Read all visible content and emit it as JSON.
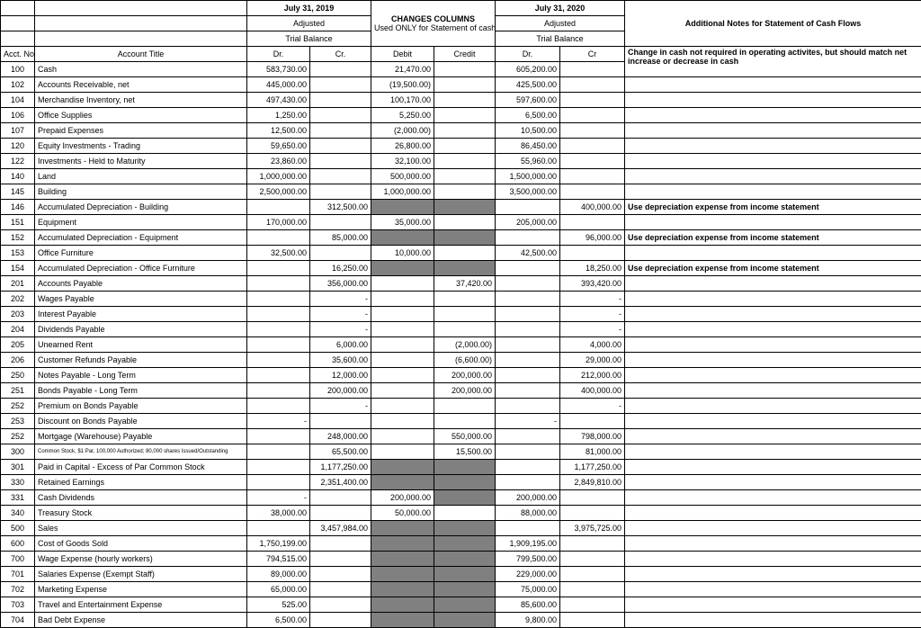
{
  "headers": {
    "date2019": "July 31, 2019",
    "adjusted": "Adjusted",
    "trialBalance": "Trial Balance",
    "changesTitle": "CHANGES COLUMNS",
    "changesSub": "Used ONLY for Statement of cash flows",
    "date2020": "July 31, 2020",
    "notesTitle": "Additional Notes for Statement of Cash Flows",
    "acctNo": "Acct. No.",
    "accountTitle": "Account Title",
    "dr": "Dr.",
    "cr": "Cr.",
    "debit": "Debit",
    "credit": "Credit",
    "cr2": "Cr"
  },
  "notes": {
    "changeCash": "Change in cash not required in operating activites, but should match net increase or decrease in cash",
    "depExpense": "Use depreciation expense from income statement"
  },
  "rows": [
    {
      "acct": "100",
      "title": "Cash",
      "dr19": "583,730.00",
      "cr19": "",
      "debit": "21,470.00",
      "credit": "",
      "dr20": "605,200.00",
      "cr20": "",
      "note": "changeCash",
      "shadeDebit": false,
      "shadeCredit": false,
      "shadeDr20": false,
      "shadeCr20": false
    },
    {
      "acct": "102",
      "title": "Accounts Receivable, net",
      "dr19": "445,000.00",
      "cr19": "",
      "debit": "(19,500.00)",
      "credit": "",
      "dr20": "425,500.00",
      "cr20": ""
    },
    {
      "acct": "104",
      "title": "Merchandise Inventory, net",
      "dr19": "497,430.00",
      "cr19": "",
      "debit": "100,170.00",
      "credit": "",
      "dr20": "597,600.00",
      "cr20": ""
    },
    {
      "acct": "106",
      "title": "Office Supplies",
      "dr19": "1,250.00",
      "cr19": "",
      "debit": "5,250.00",
      "credit": "",
      "dr20": "6,500.00",
      "cr20": ""
    },
    {
      "acct": "107",
      "title": "Prepaid Expenses",
      "dr19": "12,500.00",
      "cr19": "",
      "debit": "(2,000.00)",
      "credit": "",
      "dr20": "10,500.00",
      "cr20": ""
    },
    {
      "acct": "120",
      "title": "Equity Investments - Trading",
      "dr19": "59,650.00",
      "cr19": "",
      "debit": "26,800.00",
      "credit": "",
      "dr20": "86,450.00",
      "cr20": ""
    },
    {
      "acct": "122",
      "title": "Investments - Held to Maturity",
      "dr19": "23,860.00",
      "cr19": "",
      "debit": "32,100.00",
      "credit": "",
      "dr20": "55,960.00",
      "cr20": ""
    },
    {
      "acct": "140",
      "title": "Land",
      "dr19": "1,000,000.00",
      "cr19": "",
      "debit": "500,000.00",
      "credit": "",
      "dr20": "1,500,000.00",
      "cr20": ""
    },
    {
      "acct": "145",
      "title": "Building",
      "dr19": "2,500,000.00",
      "cr19": "",
      "debit": "1,000,000.00",
      "credit": "",
      "dr20": "3,500,000.00",
      "cr20": ""
    },
    {
      "acct": "146",
      "title": "Accumulated Depreciation - Building",
      "dr19": "",
      "cr19": "312,500.00",
      "debit": "",
      "credit": "",
      "dr20": "",
      "cr20": "400,000.00",
      "note": "depExpense",
      "shadeDebit": true,
      "shadeCredit": true
    },
    {
      "acct": "151",
      "title": "Equipment",
      "dr19": "170,000.00",
      "cr19": "",
      "debit": "35,000.00",
      "credit": "",
      "dr20": "205,000.00",
      "cr20": ""
    },
    {
      "acct": "152",
      "title": "Accumulated Depreciation - Equipment",
      "dr19": "",
      "cr19": "85,000.00",
      "debit": "",
      "credit": "",
      "dr20": "",
      "cr20": "96,000.00",
      "note": "depExpense",
      "shadeDebit": true,
      "shadeCredit": true
    },
    {
      "acct": "153",
      "title": "Office Furniture",
      "dr19": "32,500.00",
      "cr19": "",
      "debit": "10,000.00",
      "credit": "",
      "dr20": "42,500.00",
      "cr20": ""
    },
    {
      "acct": "154",
      "title": "Accumulated Depreciation - Office Furniture",
      "dr19": "",
      "cr19": "16,250.00",
      "debit": "",
      "credit": "",
      "dr20": "",
      "cr20": "18,250.00",
      "note": "depExpense",
      "shadeDebit": true,
      "shadeCredit": true
    },
    {
      "acct": "201",
      "title": "Accounts Payable",
      "dr19": "",
      "cr19": "356,000.00",
      "debit": "",
      "credit": "37,420.00",
      "dr20": "",
      "cr20": "393,420.00"
    },
    {
      "acct": "202",
      "title": "Wages Payable",
      "dr19": "",
      "cr19": "-",
      "debit": "",
      "credit": "",
      "dr20": "",
      "cr20": "-"
    },
    {
      "acct": "203",
      "title": "Interest Payable",
      "dr19": "",
      "cr19": "-",
      "debit": "",
      "credit": "",
      "dr20": "",
      "cr20": "-"
    },
    {
      "acct": "204",
      "title": "Dividends Payable",
      "dr19": "",
      "cr19": "-",
      "debit": "",
      "credit": "",
      "dr20": "",
      "cr20": "-"
    },
    {
      "acct": "205",
      "title": "Unearned Rent",
      "dr19": "",
      "cr19": "6,000.00",
      "debit": "",
      "credit": "(2,000.00)",
      "dr20": "",
      "cr20": "4,000.00"
    },
    {
      "acct": "206",
      "title": "Customer Refunds Payable",
      "dr19": "",
      "cr19": "35,600.00",
      "debit": "",
      "credit": "(6,600.00)",
      "dr20": "",
      "cr20": "29,000.00"
    },
    {
      "acct": "250",
      "title": "Notes Payable - Long Term",
      "dr19": "",
      "cr19": "12,000.00",
      "debit": "",
      "credit": "200,000.00",
      "dr20": "",
      "cr20": "212,000.00"
    },
    {
      "acct": "251",
      "title": "Bonds Payable - Long Term",
      "dr19": "",
      "cr19": "200,000.00",
      "debit": "",
      "credit": "200,000.00",
      "dr20": "",
      "cr20": "400,000.00"
    },
    {
      "acct": "252",
      "title": "Premium on Bonds Payable",
      "dr19": "",
      "cr19": "-",
      "debit": "",
      "credit": "",
      "dr20": "",
      "cr20": "-"
    },
    {
      "acct": "253",
      "title": "Discount on Bonds Payable",
      "dr19": "-",
      "cr19": "",
      "debit": "",
      "credit": "",
      "dr20": "-",
      "cr20": ""
    },
    {
      "acct": "252",
      "title": "Mortgage (Warehouse) Payable",
      "dr19": "",
      "cr19": "248,000.00",
      "debit": "",
      "credit": "550,000.00",
      "dr20": "",
      "cr20": "798,000.00"
    },
    {
      "acct": "300",
      "title": "Common Stock, $1 Par, 100,000 Authorized; 80,000 shares Issued/Outstanding",
      "tiny": true,
      "dr19": "",
      "cr19": "65,500.00",
      "debit": "",
      "credit": "15,500.00",
      "dr20": "",
      "cr20": "81,000.00"
    },
    {
      "acct": "301",
      "title": "Paid in Capital - Excess of Par Common Stock",
      "dr19": "",
      "cr19": "1,177,250.00",
      "debit": "",
      "credit": "",
      "dr20": "",
      "cr20": "1,177,250.00",
      "shadeDebit": true,
      "shadeCredit": true
    },
    {
      "acct": "330",
      "title": "Retained Earnings",
      "dr19": "",
      "cr19": "2,351,400.00",
      "debit": "",
      "credit": "",
      "dr20": "",
      "cr20": "2,849,810.00",
      "shadeDebit": true,
      "shadeCredit": true
    },
    {
      "acct": "331",
      "title": "Cash Dividends",
      "dr19": "-",
      "cr19": "",
      "debit": "200,000.00",
      "credit": "",
      "dr20": "200,000.00",
      "cr20": "",
      "shadeCredit": true
    },
    {
      "acct": "340",
      "title": "Treasury Stock",
      "dr19": "38,000.00",
      "cr19": "",
      "debit": "50,000.00",
      "credit": "",
      "dr20": "88,000.00",
      "cr20": ""
    },
    {
      "acct": "500",
      "title": "Sales",
      "dr19": "",
      "cr19": "3,457,984.00",
      "debit": "",
      "credit": "",
      "dr20": "",
      "cr20": "3,975,725.00",
      "shadeDebit": true,
      "shadeCredit": true
    },
    {
      "acct": "600",
      "title": "Cost of Goods Sold",
      "dr19": "1,750,199.00",
      "cr19": "",
      "debit": "",
      "credit": "",
      "dr20": "1,909,195.00",
      "cr20": "",
      "shadeDebit": true,
      "shadeCredit": true
    },
    {
      "acct": "700",
      "title": "Wage Expense (hourly workers)",
      "dr19": "794,515.00",
      "cr19": "",
      "debit": "",
      "credit": "",
      "dr20": "799,500.00",
      "cr20": "",
      "shadeDebit": true,
      "shadeCredit": true
    },
    {
      "acct": "701",
      "title": "Salaries Expense (Exempt Staff)",
      "dr19": "89,000.00",
      "cr19": "",
      "debit": "",
      "credit": "",
      "dr20": "229,000.00",
      "cr20": "",
      "shadeDebit": true,
      "shadeCredit": true
    },
    {
      "acct": "702",
      "title": "Marketing Expense",
      "dr19": "65,000.00",
      "cr19": "",
      "debit": "",
      "credit": "",
      "dr20": "75,000.00",
      "cr20": "",
      "shadeDebit": true,
      "shadeCredit": true
    },
    {
      "acct": "703",
      "title": "Travel and Entertainment Expense",
      "dr19": "525.00",
      "cr19": "",
      "debit": "",
      "credit": "",
      "dr20": "85,600.00",
      "cr20": "",
      "shadeDebit": true,
      "shadeCredit": true
    },
    {
      "acct": "704",
      "title": "Bad Debt Expense",
      "dr19": "6,500.00",
      "cr19": "",
      "debit": "",
      "credit": "",
      "dr20": "9,800.00",
      "cr20": "",
      "shadeDebit": true,
      "shadeCredit": true
    }
  ]
}
